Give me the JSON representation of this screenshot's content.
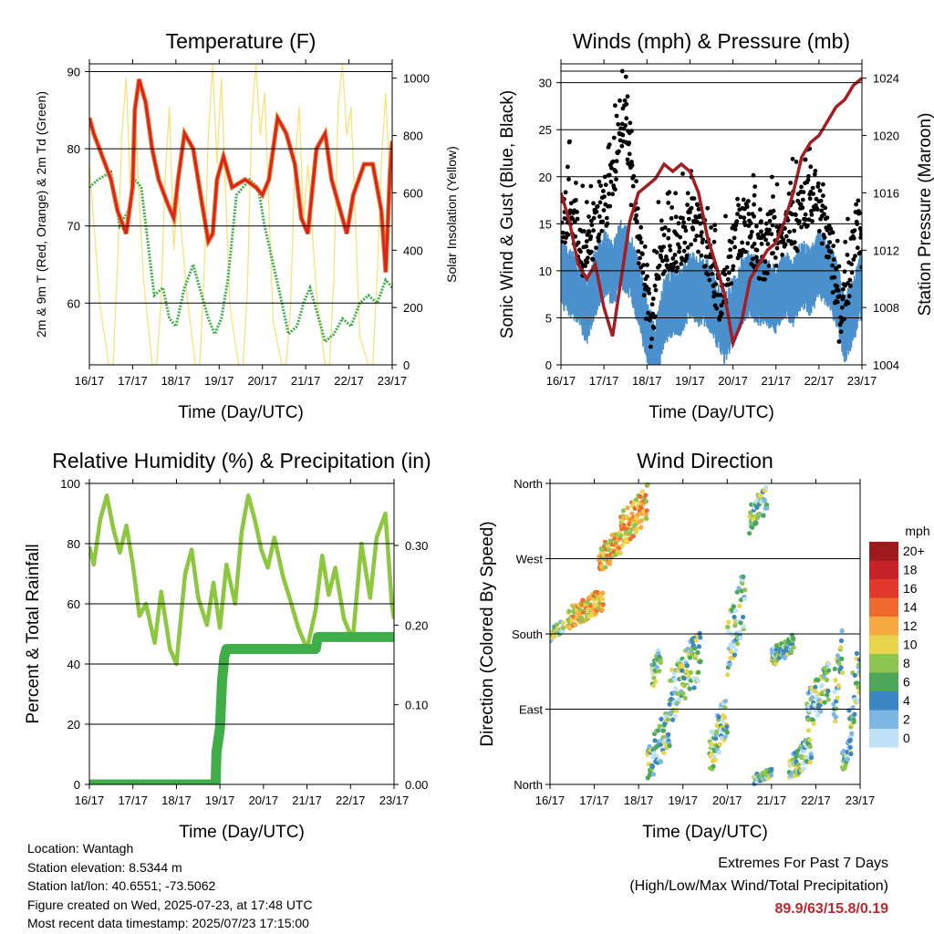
{
  "axis_labels": {
    "time_ticks": [
      "16/17",
      "17/17",
      "18/17",
      "19/17",
      "20/17",
      "21/17",
      "22/17",
      "23/17"
    ]
  },
  "colors": {
    "temp2m": "#d7261e",
    "temp9m": "#f07f2a",
    "dewpoint": "#3fae49",
    "solar": "#f7e27c",
    "gust": "#000000",
    "wind": "#4a90cc",
    "pressure": "#a31e22",
    "rh": "#8dc63f",
    "precip": "#3fae49",
    "extremes": "#c0272d"
  },
  "info": {
    "location": "Location: Wantagh",
    "elevation": "Station elevation: 8.5344 m",
    "latlon": "Station lat/lon: 40.6551; -73.5062",
    "created": "Figure created on Wed, 2025-07-23, at 17:48 UTC",
    "recent": "Most recent data timestamp: 2025/07/23 17:15:00"
  },
  "extremes": {
    "title": "Extremes For Past 7 Days",
    "subtitle": "(High/Low/Max Wind/Total Precipitation)",
    "values": "89.9/63/15.8/0.19"
  },
  "chart_data": [
    {
      "type": "line",
      "title": "Temperature (F)",
      "xlabel": "Time (Day/UTC)",
      "ylabel": "2m & 9m T (Red, Orange) & 2m Td (Green)",
      "y2label": "Solar Insolation (Yellow)",
      "xlim": [
        0,
        7
      ],
      "ylim": [
        52,
        91
      ],
      "y2lim": [
        0,
        1050
      ],
      "yticks": [
        60,
        70,
        80,
        90
      ],
      "y2ticks": [
        0,
        200,
        400,
        600,
        800,
        1000
      ],
      "gridlines": [
        60,
        70,
        80,
        90
      ],
      "series": [
        {
          "key": "t2m",
          "x": [
            0,
            0.1,
            0.3,
            0.5,
            0.65,
            0.85,
            1.0,
            1.05,
            1.15,
            1.3,
            1.45,
            1.6,
            1.8,
            1.95,
            2.05,
            2.2,
            2.4,
            2.6,
            2.75,
            2.85,
            2.95,
            3.1,
            3.3,
            3.6,
            3.85,
            4.0,
            4.15,
            4.35,
            4.55,
            4.75,
            4.9,
            5.05,
            5.25,
            5.45,
            5.6,
            5.8,
            5.95,
            6.1,
            6.35,
            6.55,
            6.75,
            6.85,
            6.95,
            7.0
          ],
          "y": [
            84,
            82,
            79,
            76,
            72,
            69,
            75,
            85,
            89,
            86,
            80,
            76,
            73,
            71,
            76,
            82,
            80,
            73,
            68,
            69,
            76,
            79,
            75,
            76,
            75,
            74,
            76,
            84,
            82,
            78,
            71,
            69,
            80,
            82,
            76,
            72,
            69,
            74,
            78,
            78,
            72,
            64,
            77,
            81
          ]
        },
        {
          "key": "td2m",
          "x": [
            0,
            0.2,
            0.5,
            0.7,
            0.9,
            1.05,
            1.2,
            1.35,
            1.5,
            1.7,
            1.85,
            2.0,
            2.2,
            2.4,
            2.55,
            2.75,
            2.9,
            3.05,
            3.2,
            3.4,
            3.55,
            3.7,
            3.9,
            4.05,
            4.25,
            4.45,
            4.6,
            4.8,
            4.95,
            5.1,
            5.3,
            5.45,
            5.65,
            5.85,
            6.05,
            6.25,
            6.45,
            6.65,
            6.85,
            7.0
          ],
          "y": [
            75,
            76,
            77,
            70,
            72,
            76,
            75,
            68,
            61,
            62,
            58,
            57,
            62,
            65,
            62,
            58,
            56,
            58,
            63,
            74,
            75,
            76,
            75,
            70,
            65,
            60,
            56,
            57,
            60,
            62,
            58,
            55,
            56,
            58,
            57,
            60,
            61,
            60,
            63,
            62
          ]
        },
        {
          "key": "solar",
          "x": [
            0,
            0.25,
            0.45,
            0.55,
            0.65,
            0.75,
            0.85,
            0.95,
            1.05,
            1.25,
            1.45,
            1.55,
            1.65,
            1.75,
            1.85,
            1.95,
            2.05,
            2.25,
            2.45,
            2.55,
            2.65,
            2.75,
            2.85,
            2.95,
            3.05,
            3.25,
            3.45,
            3.55,
            3.65,
            3.75,
            3.85,
            3.95,
            4.05,
            4.25,
            4.45,
            4.55,
            4.65,
            4.75,
            4.85,
            4.95,
            5.05,
            5.25,
            5.45,
            5.55,
            5.65,
            5.75,
            5.85,
            5.95,
            6.05,
            6.25,
            6.45,
            6.55,
            6.65,
            6.75,
            6.85,
            6.95,
            7.0
          ],
          "y": [
            700,
            200,
            0,
            0,
            350,
            800,
            1000,
            600,
            900,
            300,
            0,
            0,
            200,
            650,
            900,
            400,
            600,
            250,
            0,
            0,
            300,
            800,
            1050,
            700,
            1000,
            200,
            0,
            0,
            250,
            850,
            1050,
            800,
            950,
            150,
            0,
            0,
            200,
            700,
            900,
            500,
            700,
            250,
            0,
            0,
            300,
            900,
            1050,
            800,
            900,
            100,
            0,
            0,
            300,
            700,
            950,
            600,
            800
          ]
        }
      ]
    },
    {
      "type": "scatter",
      "title": "Winds (mph) & Pressure (mb)",
      "xlabel": "Time (Day/UTC)",
      "ylabel": "Sonic Wind & Gust (Blue, Black)",
      "y2label": "Station Pressure (Maroon)",
      "xlim": [
        0,
        7
      ],
      "ylim": [
        0,
        32
      ],
      "y2lim": [
        1004,
        1025
      ],
      "yticks": [
        0,
        5,
        10,
        15,
        20,
        25,
        30
      ],
      "y2ticks": [
        1004,
        1008,
        1012,
        1016,
        1020,
        1024
      ],
      "gridlines": [
        5,
        10,
        15,
        20,
        25,
        30
      ],
      "series": [
        {
          "key": "gust",
          "x": [
            0,
            0.2,
            0.4,
            0.6,
            0.8,
            1.0,
            1.1,
            1.3,
            1.5,
            1.6,
            1.8,
            1.95,
            2.1,
            2.3,
            2.5,
            2.7,
            2.9,
            3.1,
            3.3,
            3.5,
            3.7,
            3.9,
            4.1,
            4.3,
            4.5,
            4.7,
            4.9,
            5.1,
            5.3,
            5.5,
            5.7,
            5.9,
            6.1,
            6.3,
            6.5,
            6.7,
            6.9,
            7.0
          ],
          "y": [
            15,
            17,
            14,
            11,
            15,
            17,
            18,
            22,
            27,
            20,
            14,
            8,
            4,
            12,
            13,
            12,
            14,
            15,
            14,
            10,
            7,
            10,
            14,
            15,
            13,
            11,
            14,
            13,
            16,
            15,
            17,
            18,
            15,
            11,
            4,
            10,
            15,
            12
          ]
        },
        {
          "key": "wind",
          "x": [
            0,
            0.2,
            0.4,
            0.6,
            0.8,
            1.0,
            1.2,
            1.4,
            1.6,
            1.8,
            2.0,
            2.2,
            2.4,
            2.6,
            2.8,
            3.0,
            3.2,
            3.4,
            3.6,
            3.8,
            4.0,
            4.2,
            4.4,
            4.6,
            4.8,
            5.0,
            5.2,
            5.4,
            5.6,
            5.8,
            6.0,
            6.2,
            6.4,
            6.6,
            6.8,
            7.0
          ],
          "y": [
            10,
            9,
            8,
            6,
            9,
            11,
            10,
            12,
            11,
            8,
            4,
            1,
            6,
            7,
            7,
            9,
            8,
            8,
            6,
            4,
            6,
            8,
            9,
            8,
            8,
            7,
            9,
            8,
            10,
            9,
            11,
            10,
            8,
            4,
            6,
            9
          ]
        },
        {
          "key": "pressure",
          "x": [
            0,
            0.2,
            0.4,
            0.6,
            0.8,
            1.0,
            1.2,
            1.4,
            1.6,
            1.8,
            2.0,
            2.2,
            2.4,
            2.6,
            2.8,
            3.0,
            3.2,
            3.4,
            3.6,
            3.8,
            4.0,
            4.2,
            4.4,
            4.6,
            4.8,
            5.0,
            5.2,
            5.4,
            5.6,
            5.8,
            6.0,
            6.2,
            6.4,
            6.6,
            6.8,
            7.0
          ],
          "y": [
            1016,
            1014,
            1011,
            1010,
            1011,
            1008,
            1006,
            1010,
            1014,
            1016,
            1016.5,
            1017,
            1018,
            1017.5,
            1018,
            1017.5,
            1016,
            1013,
            1011,
            1009,
            1005.5,
            1007,
            1010,
            1011,
            1012,
            1012.5,
            1014,
            1016,
            1018.5,
            1019.5,
            1020,
            1021,
            1022,
            1022.5,
            1023.5,
            1024
          ]
        }
      ]
    },
    {
      "type": "line",
      "title": "Relative Humidity (%) & Precipitation (in)",
      "xlabel": "Time (Day/UTC)",
      "ylabel": "Percent & Total Rainfall",
      "xlim": [
        0,
        7
      ],
      "ylim": [
        0,
        100
      ],
      "y2lim": [
        0,
        0.3778
      ],
      "yticks": [
        0,
        20,
        40,
        60,
        80,
        100
      ],
      "y2ticks": [
        0.0,
        0.1,
        0.2,
        0.3
      ],
      "y2ticklabels": [
        "0.00",
        "0.10",
        "0.20",
        "0.30"
      ],
      "gridlines": [
        20,
        40,
        60,
        80
      ],
      "series": [
        {
          "key": "rh",
          "x": [
            0,
            0.1,
            0.25,
            0.4,
            0.55,
            0.7,
            0.85,
            1.0,
            1.15,
            1.3,
            1.5,
            1.65,
            1.85,
            2.0,
            2.2,
            2.35,
            2.5,
            2.7,
            2.85,
            3.0,
            3.15,
            3.35,
            3.5,
            3.65,
            3.8,
            3.95,
            4.1,
            4.25,
            4.45,
            4.6,
            4.8,
            5.0,
            5.2,
            5.35,
            5.5,
            5.65,
            5.85,
            6.05,
            6.25,
            6.45,
            6.6,
            6.8,
            6.95,
            7.0
          ],
          "y": [
            79,
            73,
            88,
            96,
            85,
            77,
            86,
            73,
            56,
            60,
            47,
            64,
            45,
            40,
            70,
            78,
            62,
            53,
            67,
            52,
            73,
            60,
            84,
            96,
            88,
            78,
            72,
            82,
            69,
            62,
            52,
            45,
            58,
            76,
            63,
            72,
            55,
            48,
            80,
            62,
            82,
            90,
            60,
            55
          ]
        },
        {
          "key": "precip",
          "x": [
            0,
            2.9,
            2.92,
            3.0,
            3.05,
            3.1,
            3.15,
            5.0,
            5.2,
            5.25,
            7.0
          ],
          "y": [
            0,
            0,
            0.04,
            0.07,
            0.13,
            0.16,
            0.17,
            0.17,
            0.17,
            0.185,
            0.185
          ]
        }
      ]
    },
    {
      "type": "scatter",
      "title": "Wind Direction",
      "xlabel": "Time (Day/UTC)",
      "ylabel": "Direction (Colored By Speed)",
      "xlim": [
        0,
        7
      ],
      "ylim": [
        0,
        360
      ],
      "yticklabels": [
        "North",
        "East",
        "South",
        "West",
        "North"
      ],
      "gridlines": [
        90,
        180,
        270
      ],
      "legend": {
        "title": "mph",
        "labels": [
          "20+",
          "18",
          "16",
          "14",
          "12",
          "10",
          "8",
          "6",
          "4",
          "2",
          "0"
        ],
        "colors": [
          "#9e1a1d",
          "#c52127",
          "#e0382b",
          "#ef6a2d",
          "#f6a941",
          "#e9d44d",
          "#8cc54f",
          "#4ea85a",
          "#3c86c3",
          "#7cb7e3",
          "#bfe3f5"
        ]
      },
      "clusters": [
        {
          "x": [
            0.0,
            0.3
          ],
          "y": [
            170,
            200
          ]
        },
        {
          "x": [
            0.4,
            1.2
          ],
          "y": [
            185,
            235
          ]
        },
        {
          "x": [
            1.1,
            1.6
          ],
          "y": [
            250,
            310
          ]
        },
        {
          "x": [
            1.6,
            2.2
          ],
          "y": [
            280,
            360
          ]
        },
        {
          "x": [
            2.2,
            2.7
          ],
          "y": [
            0,
            95
          ]
        },
        {
          "x": [
            2.3,
            2.5
          ],
          "y": [
            110,
            170
          ]
        },
        {
          "x": [
            2.7,
            3.4
          ],
          "y": [
            70,
            190
          ]
        },
        {
          "x": [
            3.6,
            4.0
          ],
          "y": [
            10,
            110
          ]
        },
        {
          "x": [
            4.0,
            4.4
          ],
          "y": [
            130,
            260
          ]
        },
        {
          "x": [
            4.5,
            4.9
          ],
          "y": [
            300,
            360
          ]
        },
        {
          "x": [
            4.6,
            5.0
          ],
          "y": [
            0,
            20
          ]
        },
        {
          "x": [
            5.0,
            5.5
          ],
          "y": [
            140,
            180
          ]
        },
        {
          "x": [
            5.4,
            5.9
          ],
          "y": [
            0,
            60
          ]
        },
        {
          "x": [
            5.8,
            6.3
          ],
          "y": [
            60,
            150
          ]
        },
        {
          "x": [
            6.4,
            6.6
          ],
          "y": [
            60,
            190
          ]
        },
        {
          "x": [
            6.6,
            6.8
          ],
          "y": [
            10,
            60
          ]
        },
        {
          "x": [
            6.75,
            7.0
          ],
          "y": [
            40,
            190
          ]
        }
      ]
    }
  ]
}
